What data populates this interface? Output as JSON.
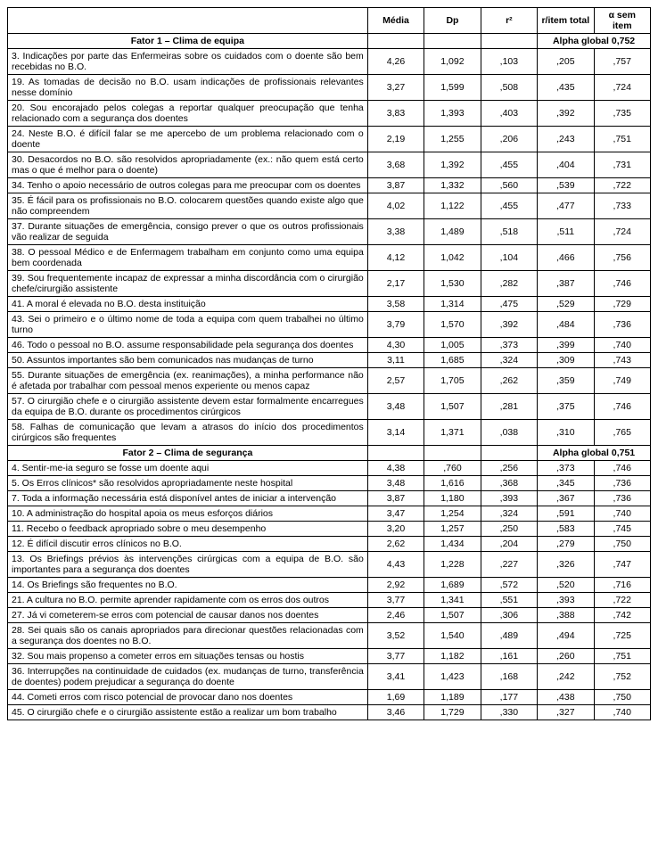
{
  "columns": {
    "item": "",
    "mean": "Média",
    "dp": "Dp",
    "r2": "r²",
    "ritem": "r/item total",
    "alpha": "α sem item"
  },
  "factor1": {
    "title": "Fator 1 – Clima de equipa",
    "alpha_label": "Alpha global 0,752",
    "rows": [
      {
        "text": "3. Indicações por parte das Enfermeiras sobre os cuidados com o doente são bem recebidas no B.O.",
        "m": "4,26",
        "dp": "1,092",
        "r2": ",103",
        "ri": ",205",
        "a": ",757"
      },
      {
        "text": "19. As tomadas de decisão no B.O. usam indicações de profissionais relevantes nesse domínio",
        "m": "3,27",
        "dp": "1,599",
        "r2": ",508",
        "ri": ",435",
        "a": ",724"
      },
      {
        "text": "20. Sou encorajado pelos colegas a reportar qualquer preocupação que tenha relacionado com a segurança dos doentes",
        "m": "3,83",
        "dp": "1,393",
        "r2": ",403",
        "ri": ",392",
        "a": ",735"
      },
      {
        "text": "24. Neste B.O. é difícil falar se me apercebo de um problema relacionado com o doente",
        "m": "2,19",
        "dp": "1,255",
        "r2": ",206",
        "ri": ",243",
        "a": ",751"
      },
      {
        "text": "30. Desacordos no B.O. são resolvidos apropriadamente (ex.: não quem está certo mas o que é melhor para o doente)",
        "m": "3,68",
        "dp": "1,392",
        "r2": ",455",
        "ri": ",404",
        "a": ",731"
      },
      {
        "text": "34. Tenho o apoio necessário de outros colegas para me preocupar com os doentes",
        "m": "3,87",
        "dp": "1,332",
        "r2": ",560",
        "ri": ",539",
        "a": ",722"
      },
      {
        "text": "35. É fácil para os profissionais no B.O. colocarem questões quando existe algo que não compreendem",
        "m": "4,02",
        "dp": "1,122",
        "r2": ",455",
        "ri": ",477",
        "a": ",733"
      },
      {
        "text": "37. Durante situações de emergência, consigo prever o que os outros profissionais vão realizar de seguida",
        "m": "3,38",
        "dp": "1,489",
        "r2": ",518",
        "ri": ",511",
        "a": ",724"
      },
      {
        "text": "38. O pessoal Médico e de Enfermagem trabalham em conjunto como uma equipa bem coordenada",
        "m": "4,12",
        "dp": "1,042",
        "r2": ",104",
        "ri": ",466",
        "a": ",756"
      },
      {
        "text": "39. Sou frequentemente incapaz de expressar a minha discordância com o cirurgião chefe/cirurgião assistente",
        "m": "2,17",
        "dp": "1,530",
        "r2": ",282",
        "ri": ",387",
        "a": ",746"
      },
      {
        "text": "41. A moral é elevada no B.O. desta instituição",
        "m": "3,58",
        "dp": "1,314",
        "r2": ",475",
        "ri": ",529",
        "a": ",729"
      },
      {
        "text": "43. Sei o primeiro e o último nome de toda a equipa com quem trabalhei no último turno",
        "m": "3,79",
        "dp": "1,570",
        "r2": ",392",
        "ri": ",484",
        "a": ",736"
      },
      {
        "text": "46. Todo o pessoal no B.O. assume responsabilidade pela segurança dos doentes",
        "m": "4,30",
        "dp": "1,005",
        "r2": ",373",
        "ri": ",399",
        "a": ",740"
      },
      {
        "text": "50. Assuntos importantes são bem comunicados nas mudanças de turno",
        "m": "3,11",
        "dp": "1,685",
        "r2": ",324",
        "ri": ",309",
        "a": ",743"
      },
      {
        "text": "55. Durante situações de emergência (ex. reanimações), a minha performance não é afetada por trabalhar com pessoal menos experiente ou menos capaz",
        "m": "2,57",
        "dp": "1,705",
        "r2": ",262",
        "ri": ",359",
        "a": ",749"
      },
      {
        "text": "57. O cirurgião chefe e o cirurgião assistente devem estar formalmente encarregues da equipa de B.O. durante os procedimentos cirúrgicos",
        "m": "3,48",
        "dp": "1,507",
        "r2": ",281",
        "ri": ",375",
        "a": ",746"
      },
      {
        "text": "58. Falhas de comunicação que levam a atrasos do início dos procedimentos cirúrgicos são frequentes",
        "m": "3,14",
        "dp": "1,371",
        "r2": ",038",
        "ri": ",310",
        "a": ",765"
      }
    ]
  },
  "factor2": {
    "title": "Fator 2 – Clima de segurança",
    "alpha_label": "Alpha global 0,751",
    "rows": [
      {
        "text": "4. Sentir-me-ia seguro se fosse um doente aqui",
        "m": "4,38",
        "dp": ",760",
        "r2": ",256",
        "ri": ",373",
        "a": ",746"
      },
      {
        "text": "5. Os Erros clínicos* são resolvidos apropriadamente neste hospital",
        "m": "3,48",
        "dp": "1,616",
        "r2": ",368",
        "ri": ",345",
        "a": ",736"
      },
      {
        "text": "7. Toda a informação necessária está disponível antes de iniciar a intervenção",
        "m": "3,87",
        "dp": "1,180",
        "r2": ",393",
        "ri": ",367",
        "a": ",736"
      },
      {
        "text": "10. A administração do hospital apoia os meus esforços diários",
        "m": "3,47",
        "dp": "1,254",
        "r2": ",324",
        "ri": ",591",
        "a": ",740"
      },
      {
        "text": "11. Recebo o feedback apropriado sobre o meu desempenho",
        "m": "3,20",
        "dp": "1,257",
        "r2": ",250",
        "ri": ",583",
        "a": ",745"
      },
      {
        "text": "12. É difícil discutir erros clínicos no B.O.",
        "m": "2,62",
        "dp": "1,434",
        "r2": ",204",
        "ri": ",279",
        "a": ",750"
      },
      {
        "text": "13. Os Briefings prévios às intervenções cirúrgicas com a equipa de B.O. são importantes para a segurança dos doentes",
        "m": "4,43",
        "dp": "1,228",
        "r2": ",227",
        "ri": ",326",
        "a": ",747"
      },
      {
        "text": "14. Os Briefings são frequentes no B.O.",
        "m": "2,92",
        "dp": "1,689",
        "r2": ",572",
        "ri": ",520",
        "a": ",716"
      },
      {
        "text": "21. A cultura no B.O. permite aprender rapidamente com os erros dos outros",
        "m": "3,77",
        "dp": "1,341",
        "r2": ",551",
        "ri": ",393",
        "a": ",722"
      },
      {
        "text": "27. Já vi cometerem-se erros com potencial de causar danos nos doentes",
        "m": "2,46",
        "dp": "1,507",
        "r2": ",306",
        "ri": ",388",
        "a": ",742"
      },
      {
        "text": "28. Sei quais são os canais apropriados para direcionar questões relacionadas com a segurança dos doentes no B.O.",
        "m": "3,52",
        "dp": "1,540",
        "r2": ",489",
        "ri": ",494",
        "a": ",725"
      },
      {
        "text": "32. Sou mais propenso a cometer erros em situações tensas ou hostis",
        "m": "3,77",
        "dp": "1,182",
        "r2": ",161",
        "ri": ",260",
        "a": ",751"
      },
      {
        "text": "36. Interrupções na continuidade de cuidados (ex. mudanças de turno, transferência de doentes) podem prejudicar a segurança do doente",
        "m": "3,41",
        "dp": "1,423",
        "r2": ",168",
        "ri": ",242",
        "a": ",752"
      },
      {
        "text": "44. Cometi erros com risco potencial de provocar dano nos doentes",
        "m": "1,69",
        "dp": "1,189",
        "r2": ",177",
        "ri": ",438",
        "a": ",750"
      },
      {
        "text": "45. O cirurgião chefe e o cirurgião assistente estão a realizar um bom trabalho",
        "m": "3,46",
        "dp": "1,729",
        "r2": ",330",
        "ri": ",327",
        "a": ",740"
      }
    ]
  }
}
